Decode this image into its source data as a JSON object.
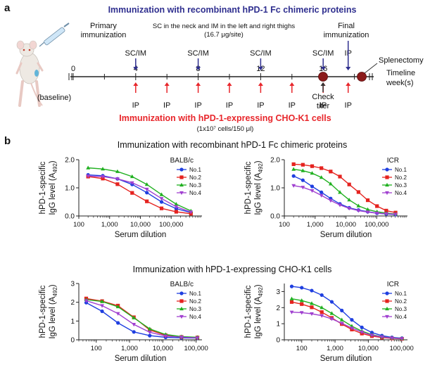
{
  "panel_a": {
    "label": "a",
    "title": "Immunization with recombinant hPD-1 Fc chimeric proteins",
    "primary_label_1": "Primary",
    "primary_label_2": "immunization",
    "route_note_1": "SC in the neck and IM in the left and right thighs",
    "route_note_2": "(16.7 μg/site)",
    "final_label_1": "Final",
    "final_label_2": "immunization",
    "splenectomy_label": "Splenectomy",
    "timeline_label": "Timeline",
    "week_label": "week(s)",
    "sc_im_label": "SC/IM",
    "ip_label": "IP",
    "baseline_label": "(baseline)",
    "check_label_1": "Check",
    "check_label_2": "titer",
    "cell_title": "Immunization with hPD-1-expressing CHO-K1 cells",
    "cell_dose": "(1x10⁷ cells/150 μl)",
    "week_numbers": [
      "0",
      "4",
      "8",
      "12",
      "16"
    ],
    "colors": {
      "protein": "#2f2f8f",
      "cells": "#e8262b",
      "marker": "#8b1a1a"
    }
  },
  "panel_b": {
    "label": "b",
    "ylabel_1": "hPD-1-specific",
    "ylabel_2": "IgG level (A",
    "ylabel_sub": "492",
    "ylabel_end": ")",
    "xlabel": "Serum dilution",
    "legend": [
      "No.1",
      "No.2",
      "No.3",
      "No.4"
    ],
    "series_colors": [
      "#1f3fe0",
      "#e5231f",
      "#20b020",
      "#a040d0"
    ],
    "row_titles": [
      "Immunization with recombinant hPD-1 Fc chimeric proteins",
      "Immunization with hPD-1-expressing CHO-K1 cells"
    ]
  },
  "chart_data": [
    {
      "type": "line",
      "title": "BALB/c",
      "xlabel": "Serum dilution",
      "ylabel": "hPD-1-specific IgG level (A492)",
      "xscale": "log",
      "xlim": [
        100,
        1000000
      ],
      "ylim": [
        0,
        2.0
      ],
      "xticks": [
        "100",
        "1,000",
        "10,000",
        "100,000"
      ],
      "yticks": [
        "0.0",
        "1.0",
        "2.0"
      ],
      "legend_position": "top-right",
      "x": [
        200,
        600,
        1800,
        5400,
        16200,
        48600,
        145800,
        437400
      ],
      "series": [
        {
          "name": "No.1",
          "values": [
            1.46,
            1.43,
            1.32,
            1.12,
            0.83,
            0.5,
            0.26,
            0.12
          ]
        },
        {
          "name": "No.2",
          "values": [
            1.4,
            1.33,
            1.13,
            0.82,
            0.52,
            0.27,
            0.15,
            0.08
          ]
        },
        {
          "name": "No.3",
          "values": [
            1.71,
            1.67,
            1.58,
            1.4,
            1.12,
            0.76,
            0.42,
            0.18
          ]
        },
        {
          "name": "No.4",
          "values": [
            1.42,
            1.4,
            1.32,
            1.18,
            0.95,
            0.62,
            0.33,
            0.14
          ]
        }
      ]
    },
    {
      "type": "line",
      "title": "ICR",
      "xlabel": "Serum dilution",
      "ylabel": "hPD-1-specific IgG level (A492)",
      "xscale": "log",
      "xlim": [
        100,
        1000000
      ],
      "ylim": [
        0,
        2.0
      ],
      "xticks": [
        "100",
        "1,000",
        "10,000",
        "100,000"
      ],
      "yticks": [
        "0.0",
        "1.0",
        "2.0"
      ],
      "legend_position": "top-right",
      "x": [
        200,
        400,
        800,
        1600,
        3200,
        6400,
        12800,
        25600,
        51200,
        102400,
        204800,
        409600
      ],
      "series": [
        {
          "name": "No.1",
          "values": [
            1.42,
            1.27,
            1.05,
            0.84,
            0.62,
            0.43,
            0.29,
            0.21,
            0.15,
            0.1,
            0.07,
            0.05
          ]
        },
        {
          "name": "No.2",
          "values": [
            1.84,
            1.82,
            1.77,
            1.7,
            1.58,
            1.4,
            1.12,
            0.85,
            0.56,
            0.35,
            0.19,
            0.12
          ]
        },
        {
          "name": "No.3",
          "values": [
            1.66,
            1.61,
            1.52,
            1.37,
            1.14,
            0.84,
            0.57,
            0.36,
            0.23,
            0.15,
            0.1,
            0.07
          ]
        },
        {
          "name": "No.4",
          "values": [
            1.08,
            1.02,
            0.9,
            0.73,
            0.55,
            0.39,
            0.27,
            0.19,
            0.14,
            0.1,
            0.08,
            0.06
          ]
        }
      ]
    },
    {
      "type": "line",
      "title": "BALB/c",
      "xlabel": "Serum dilution",
      "ylabel": "hPD-1-specific IgG level (A492)",
      "xscale": "log",
      "xlim": [
        30,
        150000
      ],
      "ylim": [
        0,
        3.0
      ],
      "xticks": [
        "100",
        "1,000",
        "10,000",
        "100,000"
      ],
      "yticks": [
        "0",
        "1",
        "2",
        "3"
      ],
      "legend_position": "top-right",
      "x": [
        50,
        150,
        450,
        1350,
        4050,
        12150,
        36450,
        109350
      ],
      "series": [
        {
          "name": "No.1",
          "values": [
            1.98,
            1.52,
            0.9,
            0.42,
            0.22,
            0.13,
            0.1,
            0.09
          ]
        },
        {
          "name": "No.2",
          "values": [
            2.2,
            2.06,
            1.82,
            1.2,
            0.52,
            0.24,
            0.15,
            0.12
          ]
        },
        {
          "name": "No.3",
          "values": [
            2.14,
            2.04,
            1.76,
            1.17,
            0.58,
            0.28,
            0.17,
            0.13
          ]
        },
        {
          "name": "No.4",
          "values": [
            2.08,
            1.82,
            1.4,
            0.82,
            0.4,
            0.2,
            0.14,
            0.1
          ]
        }
      ]
    },
    {
      "type": "line",
      "title": "ICR",
      "xlabel": "Serum dilution",
      "ylabel": "hPD-1-specific IgG level (A492)",
      "xscale": "log",
      "xlim": [
        30,
        150000
      ],
      "ylim": [
        0,
        3.5
      ],
      "xticks": [
        "100",
        "1,000",
        "10,000",
        "100,000"
      ],
      "yticks": [
        "0",
        "1",
        "2",
        "3"
      ],
      "legend_position": "top-right",
      "x": [
        50,
        100,
        200,
        400,
        800,
        1600,
        3200,
        6400,
        12800,
        25600,
        51200,
        102400
      ],
      "series": [
        {
          "name": "No.1",
          "values": [
            3.32,
            3.24,
            3.06,
            2.78,
            2.36,
            1.82,
            1.24,
            0.77,
            0.45,
            0.26,
            0.15,
            0.1
          ]
        },
        {
          "name": "No.2",
          "values": [
            2.35,
            2.22,
            2.02,
            1.72,
            1.36,
            0.98,
            0.64,
            0.39,
            0.23,
            0.14,
            0.09,
            0.06
          ]
        },
        {
          "name": "No.3",
          "values": [
            2.55,
            2.44,
            2.26,
            2.0,
            1.64,
            1.24,
            0.85,
            0.54,
            0.32,
            0.19,
            0.12,
            0.08
          ]
        },
        {
          "name": "No.4",
          "values": [
            1.72,
            1.69,
            1.62,
            1.5,
            1.3,
            1.03,
            0.73,
            0.48,
            0.29,
            0.18,
            0.11,
            0.07
          ]
        }
      ]
    }
  ]
}
